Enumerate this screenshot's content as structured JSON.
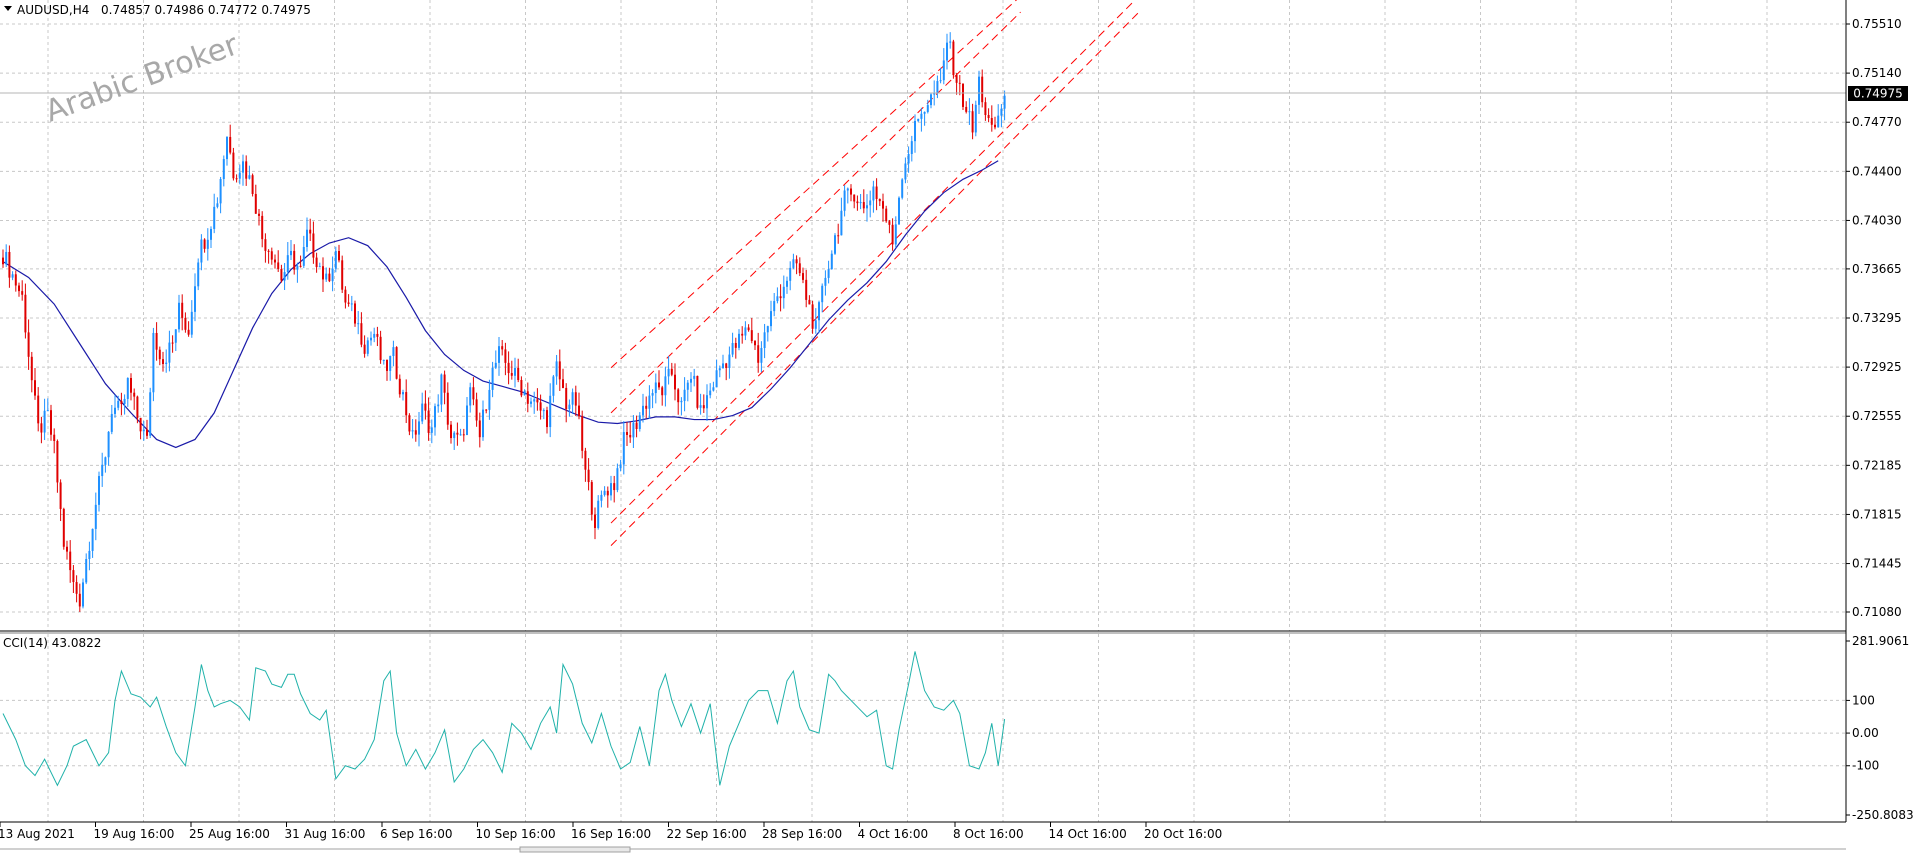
{
  "header": {
    "symbol": "AUDUSD,H4",
    "ohlc": "0.74857 0.74986 0.74772 0.74975"
  },
  "watermark": "Arabic Broker",
  "indicator": {
    "label": "CCI(14) 43.0822"
  },
  "colors": {
    "bull": "#1e90ff",
    "bear": "#e00000",
    "ma": "#1a1aa8",
    "cci": "#20b2aa",
    "channel": "#ff0000",
    "grid": "#c8c8c8",
    "price_tag_bg": "#000000",
    "price_tag_fg": "#ffffff"
  },
  "chart_data": [
    {
      "type": "candlestick",
      "symbol": "AUDUSD",
      "timeframe": "H4",
      "x_labels": [
        "13 Aug 2021",
        "19 Aug 16:00",
        "25 Aug 16:00",
        "31 Aug 16:00",
        "6 Sep 16:00",
        "10 Sep 16:00",
        "16 Sep 16:00",
        "22 Sep 16:00",
        "28 Sep 16:00",
        "4 Oct 16:00",
        "8 Oct 16:00",
        "14 Oct 16:00",
        "20 Oct 16:00"
      ],
      "y_ticks": [
        "0.75510",
        "0.75140",
        "0.74770",
        "0.74400",
        "0.74030",
        "0.73665",
        "0.73295",
        "0.72925",
        "0.72555",
        "0.72185",
        "0.71815",
        "0.71445",
        "0.71080"
      ],
      "ylim": [
        0.7102,
        0.7572
      ],
      "current_price": "0.74975",
      "close_path": [
        [
          0,
          0.7378
        ],
        [
          6,
          0.7345
        ],
        [
          9,
          0.7282
        ],
        [
          11,
          0.7245
        ],
        [
          14,
          0.7255
        ],
        [
          16,
          0.723
        ],
        [
          19,
          0.716
        ],
        [
          22,
          0.7128
        ],
        [
          24,
          0.7118
        ],
        [
          26,
          0.7148
        ],
        [
          29,
          0.719
        ],
        [
          32,
          0.7228
        ],
        [
          34,
          0.7262
        ],
        [
          37,
          0.7258
        ],
        [
          39,
          0.728
        ],
        [
          42,
          0.7255
        ],
        [
          45,
          0.7236
        ],
        [
          47,
          0.7318
        ],
        [
          50,
          0.7298
        ],
        [
          53,
          0.731
        ],
        [
          55,
          0.7335
        ],
        [
          58,
          0.732
        ],
        [
          61,
          0.7378
        ],
        [
          64,
          0.7395
        ],
        [
          67,
          0.742
        ],
        [
          70,
          0.7468
        ],
        [
          72,
          0.744
        ],
        [
          75,
          0.7446
        ],
        [
          78,
          0.7428
        ],
        [
          81,
          0.739
        ],
        [
          84,
          0.738
        ],
        [
          87,
          0.736
        ],
        [
          90,
          0.7375
        ],
        [
          93,
          0.7365
        ],
        [
          95,
          0.7392
        ],
        [
          98,
          0.7375
        ],
        [
          101,
          0.7356
        ],
        [
          104,
          0.738
        ],
        [
          107,
          0.734
        ],
        [
          110,
          0.733
        ],
        [
          113,
          0.731
        ],
        [
          116,
          0.7318
        ],
        [
          119,
          0.729
        ],
        [
          122,
          0.73
        ],
        [
          125,
          0.727
        ],
        [
          128,
          0.7238
        ],
        [
          131,
          0.726
        ],
        [
          134,
          0.7246
        ],
        [
          137,
          0.7282
        ],
        [
          140,
          0.724
        ],
        [
          143,
          0.7236
        ],
        [
          146,
          0.7272
        ],
        [
          149,
          0.724
        ],
        [
          152,
          0.7282
        ],
        [
          155,
          0.7302
        ],
        [
          158,
          0.7292
        ],
        [
          161,
          0.7282
        ],
        [
          164,
          0.727
        ],
        [
          167,
          0.7262
        ],
        [
          170,
          0.7255
        ],
        [
          173,
          0.7292
        ],
        [
          176,
          0.7266
        ],
        [
          179,
          0.7266
        ],
        [
          182,
          0.7212
        ],
        [
          185,
          0.7178
        ],
        [
          188,
          0.72
        ],
        [
          191,
          0.7205
        ],
        [
          194,
          0.7236
        ],
        [
          197,
          0.7246
        ],
        [
          200,
          0.7262
        ],
        [
          203,
          0.7275
        ],
        [
          206,
          0.7275
        ],
        [
          209,
          0.7288
        ],
        [
          212,
          0.7262
        ],
        [
          215,
          0.7288
        ],
        [
          218,
          0.7258
        ],
        [
          221,
          0.7275
        ],
        [
          224,
          0.7292
        ],
        [
          227,
          0.7302
        ],
        [
          230,
          0.7312
        ],
        [
          233,
          0.7322
        ],
        [
          236,
          0.73
        ],
        [
          239,
          0.7325
        ],
        [
          242,
          0.7346
        ],
        [
          245,
          0.736
        ],
        [
          248,
          0.737
        ],
        [
          251,
          0.7346
        ],
        [
          254,
          0.732
        ],
        [
          257,
          0.7362
        ],
        [
          260,
          0.739
        ],
        [
          263,
          0.7418
        ],
        [
          266,
          0.7425
        ],
        [
          269,
          0.741
        ],
        [
          272,
          0.7428
        ],
        [
          275,
          0.7412
        ],
        [
          278,
          0.7386
        ],
        [
          281,
          0.744
        ],
        [
          284,
          0.7465
        ],
        [
          287,
          0.7486
        ],
        [
          290,
          0.7495
        ],
        [
          293,
          0.7505
        ],
        [
          295,
          0.754
        ],
        [
          297,
          0.752
        ],
        [
          299,
          0.75
        ],
        [
          301,
          0.7488
        ],
        [
          303,
          0.747
        ],
        [
          305,
          0.7508
        ],
        [
          307,
          0.7485
        ],
        [
          309,
          0.7468
        ],
        [
          311,
          0.748
        ],
        [
          313,
          0.7497
        ]
      ],
      "moving_average": [
        [
          0,
          0.7372
        ],
        [
          8,
          0.736
        ],
        [
          16,
          0.734
        ],
        [
          24,
          0.731
        ],
        [
          32,
          0.728
        ],
        [
          40,
          0.7258
        ],
        [
          48,
          0.7238
        ],
        [
          54,
          0.7232
        ],
        [
          60,
          0.7238
        ],
        [
          66,
          0.7258
        ],
        [
          72,
          0.729
        ],
        [
          78,
          0.7322
        ],
        [
          84,
          0.7348
        ],
        [
          90,
          0.7366
        ],
        [
          96,
          0.7378
        ],
        [
          102,
          0.7386
        ],
        [
          108,
          0.739
        ],
        [
          114,
          0.7384
        ],
        [
          120,
          0.7368
        ],
        [
          126,
          0.7345
        ],
        [
          132,
          0.732
        ],
        [
          138,
          0.7302
        ],
        [
          144,
          0.729
        ],
        [
          150,
          0.7282
        ],
        [
          156,
          0.7278
        ],
        [
          162,
          0.7274
        ],
        [
          168,
          0.7268
        ],
        [
          174,
          0.7262
        ],
        [
          180,
          0.7256
        ],
        [
          186,
          0.7251
        ],
        [
          192,
          0.725
        ],
        [
          198,
          0.7252
        ],
        [
          204,
          0.7255
        ],
        [
          210,
          0.7255
        ],
        [
          216,
          0.7253
        ],
        [
          222,
          0.7253
        ],
        [
          228,
          0.7256
        ],
        [
          234,
          0.7262
        ],
        [
          240,
          0.7276
        ],
        [
          246,
          0.7292
        ],
        [
          252,
          0.731
        ],
        [
          258,
          0.7328
        ],
        [
          264,
          0.7343
        ],
        [
          270,
          0.7356
        ],
        [
          276,
          0.7372
        ],
        [
          282,
          0.7392
        ],
        [
          288,
          0.741
        ],
        [
          294,
          0.7424
        ],
        [
          300,
          0.7434
        ],
        [
          306,
          0.7441
        ],
        [
          311,
          0.7448
        ]
      ],
      "channel_lines": [
        {
          "from": [
            190,
            0.7292
          ],
          "to": [
            318,
            0.7572
          ]
        },
        {
          "from": [
            190,
            0.7258
          ],
          "to": [
            318,
            0.756
          ]
        },
        {
          "from": [
            190,
            0.7175
          ],
          "to": [
            355,
            0.7572
          ]
        },
        {
          "from": [
            190,
            0.7158
          ],
          "to": [
            355,
            0.756
          ]
        }
      ]
    },
    {
      "type": "line",
      "name": "CCI(14)",
      "last_value": 43.0822,
      "y_ticks": [
        "281.9061",
        "100",
        "0.00",
        "-100",
        "-250.8083"
      ],
      "ylim": [
        -250.8083,
        281.9061
      ],
      "values": [
        [
          0,
          60
        ],
        [
          4,
          -20
        ],
        [
          7,
          -100
        ],
        [
          10,
          -130
        ],
        [
          13,
          -80
        ],
        [
          17,
          -160
        ],
        [
          20,
          -100
        ],
        [
          22,
          -40
        ],
        [
          26,
          -20
        ],
        [
          30,
          -100
        ],
        [
          33,
          -60
        ],
        [
          35,
          100
        ],
        [
          37,
          190
        ],
        [
          40,
          120
        ],
        [
          43,
          110
        ],
        [
          46,
          80
        ],
        [
          48,
          110
        ],
        [
          51,
          20
        ],
        [
          54,
          -60
        ],
        [
          57,
          -100
        ],
        [
          60,
          80
        ],
        [
          62,
          210
        ],
        [
          64,
          130
        ],
        [
          66,
          80
        ],
        [
          68,
          90
        ],
        [
          71,
          100
        ],
        [
          74,
          80
        ],
        [
          77,
          40
        ],
        [
          79,
          200
        ],
        [
          82,
          190
        ],
        [
          84,
          150
        ],
        [
          87,
          140
        ],
        [
          89,
          180
        ],
        [
          91,
          180
        ],
        [
          93,
          120
        ],
        [
          96,
          60
        ],
        [
          99,
          40
        ],
        [
          101,
          70
        ],
        [
          104,
          -140
        ],
        [
          107,
          -100
        ],
        [
          110,
          -110
        ],
        [
          113,
          -80
        ],
        [
          116,
          -20
        ],
        [
          119,
          160
        ],
        [
          121,
          190
        ],
        [
          123,
          0
        ],
        [
          126,
          -100
        ],
        [
          129,
          -50
        ],
        [
          132,
          -110
        ],
        [
          135,
          -60
        ],
        [
          138,
          10
        ],
        [
          141,
          -150
        ],
        [
          144,
          -110
        ],
        [
          147,
          -50
        ],
        [
          150,
          -20
        ],
        [
          153,
          -60
        ],
        [
          156,
          -120
        ],
        [
          159,
          30
        ],
        [
          162,
          0
        ],
        [
          165,
          -50
        ],
        [
          168,
          30
        ],
        [
          171,
          80
        ],
        [
          173,
          0
        ],
        [
          175,
          210
        ],
        [
          178,
          150
        ],
        [
          181,
          30
        ],
        [
          184,
          -30
        ],
        [
          187,
          60
        ],
        [
          190,
          -40
        ],
        [
          193,
          -110
        ],
        [
          196,
          -90
        ],
        [
          199,
          20
        ],
        [
          202,
          -100
        ],
        [
          205,
          130
        ],
        [
          207,
          180
        ],
        [
          209,
          100
        ],
        [
          212,
          20
        ],
        [
          215,
          90
        ],
        [
          218,
          0
        ],
        [
          221,
          90
        ],
        [
          224,
          -160
        ],
        [
          227,
          -40
        ],
        [
          230,
          30
        ],
        [
          233,
          100
        ],
        [
          236,
          130
        ],
        [
          239,
          130
        ],
        [
          242,
          30
        ],
        [
          245,
          160
        ],
        [
          247,
          190
        ],
        [
          249,
          80
        ],
        [
          252,
          10
        ],
        [
          255,
          0
        ],
        [
          258,
          180
        ],
        [
          260,
          160
        ],
        [
          262,
          130
        ],
        [
          264,
          110
        ],
        [
          267,
          80
        ],
        [
          270,
          50
        ],
        [
          273,
          70
        ],
        [
          276,
          -100
        ],
        [
          278,
          -110
        ],
        [
          280,
          10
        ],
        [
          283,
          150
        ],
        [
          285,
          250
        ],
        [
          288,
          130
        ],
        [
          291,
          80
        ],
        [
          294,
          70
        ],
        [
          297,
          100
        ],
        [
          299,
          60
        ],
        [
          302,
          -100
        ],
        [
          305,
          -110
        ],
        [
          307,
          -60
        ],
        [
          309,
          30
        ],
        [
          311,
          -100
        ],
        [
          313,
          43
        ]
      ]
    }
  ]
}
